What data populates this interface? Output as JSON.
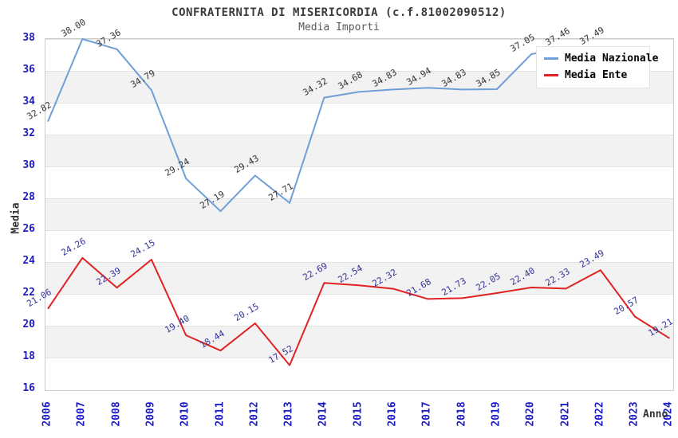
{
  "title": "CONFRATERNITA DI MISERICORDIA (c.f.81002090512)",
  "subtitle": "Media Importi",
  "axes": {
    "y_label": "Media",
    "x_label": "Anno"
  },
  "legend": {
    "position": "top-right",
    "items": [
      {
        "label": "Media Nazionale",
        "color": "#6f9fd8"
      },
      {
        "label": "Media Ente",
        "color": "#e02222"
      }
    ]
  },
  "chart_data": {
    "type": "line",
    "x_tick_labels": [
      "2006",
      "2007",
      "2008",
      "2009",
      "2010",
      "2011",
      "2012",
      "2013",
      "2014",
      "2015",
      "2016",
      "2017",
      "2018",
      "2019",
      "2020",
      "2021",
      "2022",
      "2023",
      "2024"
    ],
    "y_ticks": [
      38,
      36,
      34,
      32,
      30,
      28,
      26,
      24,
      22,
      20,
      18,
      16
    ],
    "ylim": [
      16,
      38
    ],
    "grid": "horizontal-bands",
    "legend_position": "top-right",
    "series": [
      {
        "name": "Media Nazionale",
        "line_color": "#6f9fd8",
        "label_color": "#333333",
        "values": [
          32.82,
          38.0,
          37.36,
          34.79,
          29.24,
          27.19,
          29.43,
          27.71,
          34.32,
          34.68,
          34.83,
          34.94,
          34.83,
          34.85,
          37.05,
          37.46,
          37.49,
          null,
          null
        ]
      },
      {
        "name": "Media Ente",
        "line_color": "#e02222",
        "label_color": "#333399",
        "values": [
          21.06,
          24.26,
          22.39,
          24.15,
          19.4,
          18.44,
          20.15,
          17.52,
          22.69,
          22.54,
          22.32,
          21.68,
          21.73,
          22.05,
          22.4,
          22.33,
          23.49,
          20.57,
          19.21
        ]
      }
    ],
    "colors": {
      "band_fill": "#f2f2f2",
      "band_line": "#e2e2e2",
      "plot_border": "#cccccc",
      "axis_tick_text": "#1c1cc4",
      "title_text": "#3b3b3b",
      "subtitle_text": "#5a5a5a"
    }
  }
}
